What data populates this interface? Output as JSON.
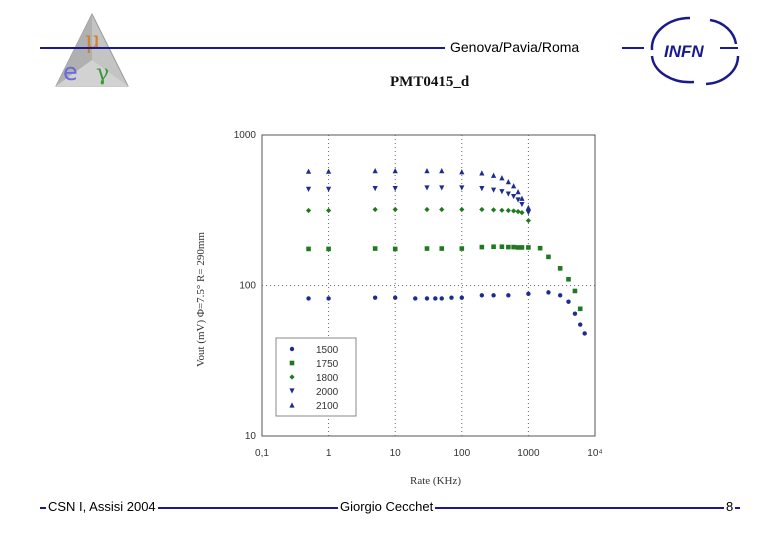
{
  "header": {
    "title": "Genova/Pavia/Roma"
  },
  "logos": {
    "left": "μeγ logo",
    "right": "INFN"
  },
  "footer": {
    "left": "CSN I, Assisi 2004",
    "center": "Giorgio Cecchet",
    "page": "8"
  },
  "colors": {
    "rule": "#1a1a8c",
    "series_blue": "#1c2d8f",
    "series_green": "#1e7a1e",
    "logo_grey": "#b8b8b8"
  },
  "chart_data": {
    "type": "scatter",
    "title": "PMT0415_d",
    "xlabel": "Rate (KHz)",
    "ylabel": "Vout (mV) Φ=7.5° R= 290mm",
    "x_scale": "log",
    "y_scale": "log",
    "xlim": [
      0.1,
      10000
    ],
    "ylim": [
      10,
      1000
    ],
    "x_ticks": [
      "0,1",
      "1",
      "10",
      "100",
      "1000",
      "10⁴"
    ],
    "y_ticks": [
      "1000",
      "100",
      "10"
    ],
    "grid": "dotted at decades",
    "legend_position": "bottom-left",
    "series": [
      {
        "name": "1500",
        "marker": "circle",
        "color": "#1c2d8f",
        "x": [
          0.5,
          1,
          5,
          10,
          20,
          30,
          40,
          50,
          70,
          100,
          200,
          300,
          500,
          1000,
          2000,
          3000,
          4000,
          5000,
          6000,
          7000
        ],
        "y": [
          82,
          82,
          83,
          83,
          82,
          82,
          82,
          82,
          83,
          83,
          86,
          86,
          86,
          88,
          90,
          86,
          78,
          65,
          55,
          48
        ]
      },
      {
        "name": "1750",
        "marker": "square",
        "color": "#1e7a1e",
        "x": [
          0.5,
          1,
          5,
          10,
          30,
          50,
          100,
          200,
          300,
          400,
          500,
          600,
          700,
          800,
          1000,
          1500,
          2000,
          3000,
          4000,
          5000,
          6000
        ],
        "y": [
          175,
          175,
          176,
          175,
          176,
          176,
          176,
          180,
          181,
          181,
          180,
          180,
          179,
          179,
          179,
          177,
          155,
          130,
          110,
          92,
          70
        ]
      },
      {
        "name": "1800",
        "marker": "diamond",
        "color": "#1e7a1e",
        "x": [
          0.5,
          1,
          5,
          10,
          30,
          50,
          100,
          200,
          300,
          400,
          500,
          600,
          700,
          800,
          1000
        ],
        "y": [
          315,
          315,
          320,
          320,
          320,
          320,
          320,
          320,
          318,
          316,
          315,
          313,
          310,
          305,
          270
        ]
      },
      {
        "name": "2000",
        "marker": "triangle-down",
        "color": "#1c2d8f",
        "x": [
          0.5,
          1,
          5,
          10,
          30,
          50,
          100,
          200,
          300,
          400,
          500,
          600,
          700,
          800,
          1000
        ],
        "y": [
          435,
          435,
          440,
          440,
          445,
          445,
          445,
          440,
          430,
          420,
          405,
          390,
          370,
          345,
          305
        ]
      },
      {
        "name": "2100",
        "marker": "triangle-up",
        "color": "#1c2d8f",
        "x": [
          0.5,
          1,
          5,
          10,
          30,
          50,
          100,
          200,
          300,
          400,
          500,
          600,
          700,
          800,
          1000
        ],
        "y": [
          575,
          575,
          580,
          580,
          580,
          580,
          570,
          560,
          540,
          520,
          490,
          460,
          420,
          380,
          330
        ]
      }
    ]
  }
}
